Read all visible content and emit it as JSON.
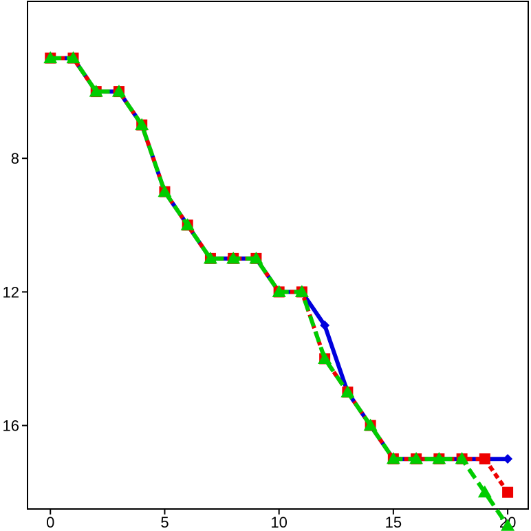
{
  "chart_data": {
    "type": "line",
    "title": "",
    "xlabel": "",
    "ylabel": "",
    "xlim": [
      -1,
      20.9
    ],
    "ylim": [
      3.3,
      18.5
    ],
    "y_inverted": true,
    "grid": false,
    "legend": "none",
    "x_ticks": [
      0,
      5,
      10,
      15,
      20
    ],
    "y_ticks": [
      8,
      12,
      16
    ],
    "x": [
      0,
      1,
      2,
      3,
      4,
      5,
      6,
      7,
      8,
      9,
      10,
      11,
      12,
      13,
      14,
      15,
      16,
      17,
      18,
      19,
      20
    ],
    "series": [
      {
        "color": "#0000dd",
        "line_style": "solid",
        "marker": "diamond",
        "values": [
          5,
          5,
          6,
          6,
          7,
          9,
          10,
          11,
          11,
          11,
          12,
          12,
          13,
          15,
          16,
          17,
          17,
          17,
          17,
          17,
          17
        ]
      },
      {
        "color": "#ee0000",
        "line_style": "dotted",
        "marker": "square",
        "values": [
          5,
          5,
          6,
          6,
          7,
          9,
          10,
          11,
          11,
          11,
          12,
          12,
          14,
          15,
          16,
          17,
          17,
          17,
          17,
          17,
          18
        ]
      },
      {
        "color": "#00cc00",
        "line_style": "dashed",
        "marker": "triangle",
        "values": [
          5,
          5,
          6,
          6,
          7,
          9,
          10,
          11,
          11,
          11,
          12,
          12,
          14,
          15,
          16,
          17,
          17,
          17,
          17,
          18,
          19
        ]
      }
    ]
  }
}
